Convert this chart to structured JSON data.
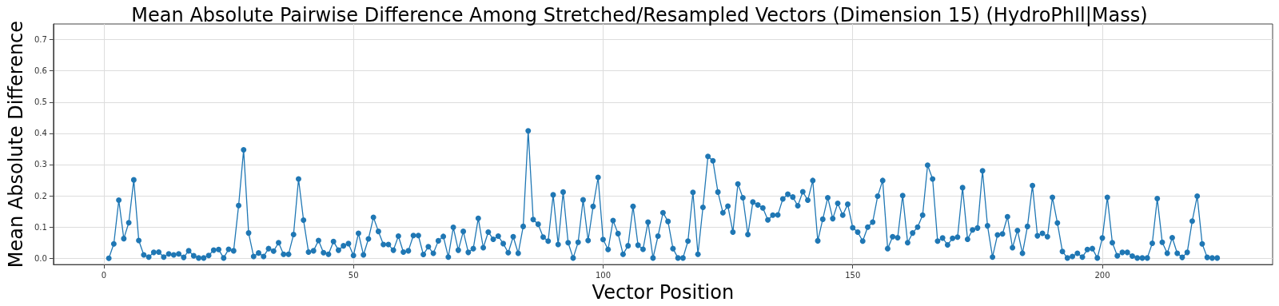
{
  "chart_data": {
    "type": "line",
    "title": "Mean Absolute Pairwise Difference Among Stretched/Resampled Vectors (Dimension 15) (HydroPhIl|Mass)",
    "xlabel": "Vector Position",
    "ylabel": "Mean Absolute Difference",
    "x": [
      1,
      2,
      3,
      4,
      5,
      6,
      7,
      8,
      9,
      10,
      11,
      12,
      13,
      14,
      15,
      16,
      17,
      18,
      19,
      20,
      21,
      22,
      23,
      24,
      25,
      26,
      27,
      28,
      29,
      30,
      31,
      32,
      33,
      34,
      35,
      36,
      37,
      38,
      39,
      40,
      41,
      42,
      43,
      44,
      45,
      46,
      47,
      48,
      49,
      50,
      51,
      52,
      53,
      54,
      55,
      56,
      57,
      58,
      59,
      60,
      61,
      62,
      63,
      64,
      65,
      66,
      67,
      68,
      69,
      70,
      71,
      72,
      73,
      74,
      75,
      76,
      77,
      78,
      79,
      80,
      81,
      82,
      83,
      84,
      85,
      86,
      87,
      88,
      89,
      90,
      91,
      92,
      93,
      94,
      95,
      96,
      97,
      98,
      99,
      100,
      101,
      102,
      103,
      104,
      105,
      106,
      107,
      108,
      109,
      110,
      111,
      112,
      113,
      114,
      115,
      116,
      117,
      118,
      119,
      120,
      121,
      122,
      123,
      124,
      125,
      126,
      127,
      128,
      129,
      130,
      131,
      132,
      133,
      134,
      135,
      136,
      137,
      138,
      139,
      140,
      141,
      142,
      143,
      144,
      145,
      146,
      147,
      148,
      149,
      150,
      151,
      152,
      153,
      154,
      155,
      156,
      157,
      158,
      159,
      160,
      161,
      162,
      163,
      164,
      165,
      166,
      167,
      168,
      169,
      170,
      171,
      172,
      173,
      174,
      175,
      176,
      177,
      178,
      179,
      180,
      181,
      182,
      183,
      184,
      185,
      186,
      187,
      188,
      189,
      190,
      191,
      192,
      193,
      194,
      195,
      196,
      197,
      198,
      199,
      200,
      201,
      202,
      203,
      204,
      205,
      206,
      207,
      208,
      209,
      210,
      211,
      212,
      213,
      214,
      215,
      216,
      217,
      218,
      219,
      220,
      221,
      222,
      223
    ],
    "series": [
      {
        "color": "#1f77b4",
        "values": [
          0.0,
          0.046,
          0.186,
          0.063,
          0.114,
          0.251,
          0.057,
          0.011,
          0.004,
          0.019,
          0.02,
          0.004,
          0.014,
          0.011,
          0.014,
          0.003,
          0.024,
          0.008,
          0.001,
          0.001,
          0.009,
          0.026,
          0.028,
          0.001,
          0.029,
          0.024,
          0.169,
          0.347,
          0.081,
          0.006,
          0.017,
          0.006,
          0.031,
          0.023,
          0.05,
          0.013,
          0.013,
          0.076,
          0.254,
          0.122,
          0.02,
          0.024,
          0.057,
          0.018,
          0.013,
          0.054,
          0.026,
          0.04,
          0.047,
          0.009,
          0.08,
          0.011,
          0.062,
          0.131,
          0.086,
          0.044,
          0.044,
          0.026,
          0.071,
          0.02,
          0.024,
          0.073,
          0.073,
          0.012,
          0.037,
          0.016,
          0.056,
          0.07,
          0.004,
          0.099,
          0.026,
          0.086,
          0.019,
          0.031,
          0.128,
          0.034,
          0.084,
          0.061,
          0.071,
          0.047,
          0.018,
          0.069,
          0.016,
          0.102,
          0.408,
          0.124,
          0.109,
          0.068,
          0.055,
          0.203,
          0.044,
          0.212,
          0.05,
          0.001,
          0.051,
          0.187,
          0.057,
          0.166,
          0.259,
          0.06,
          0.028,
          0.121,
          0.079,
          0.013,
          0.04,
          0.166,
          0.042,
          0.029,
          0.116,
          0.001,
          0.071,
          0.146,
          0.118,
          0.031,
          0.001,
          0.001,
          0.055,
          0.211,
          0.013,
          0.163,
          0.326,
          0.312,
          0.212,
          0.146,
          0.167,
          0.084,
          0.238,
          0.194,
          0.076,
          0.18,
          0.171,
          0.161,
          0.123,
          0.138,
          0.139,
          0.19,
          0.205,
          0.196,
          0.168,
          0.213,
          0.186,
          0.249,
          0.056,
          0.125,
          0.194,
          0.127,
          0.176,
          0.138,
          0.173,
          0.098,
          0.084,
          0.055,
          0.1,
          0.116,
          0.199,
          0.249,
          0.031,
          0.069,
          0.066,
          0.201,
          0.05,
          0.081,
          0.1,
          0.138,
          0.298,
          0.254,
          0.055,
          0.065,
          0.043,
          0.064,
          0.068,
          0.226,
          0.061,
          0.091,
          0.097,
          0.28,
          0.104,
          0.004,
          0.075,
          0.078,
          0.133,
          0.034,
          0.089,
          0.016,
          0.102,
          0.233,
          0.072,
          0.08,
          0.069,
          0.195,
          0.113,
          0.022,
          0.001,
          0.006,
          0.016,
          0.004,
          0.028,
          0.031,
          0.001,
          0.065,
          0.195,
          0.05,
          0.008,
          0.019,
          0.019,
          0.007,
          0.001,
          0.001,
          0.001,
          0.048,
          0.191,
          0.051,
          0.016,
          0.066,
          0.016,
          0.003,
          0.019,
          0.119,
          0.199,
          0.046,
          0.003,
          0.001,
          0.001
        ]
      }
    ],
    "xlim": [
      -10.1,
      234.1
    ],
    "xticks": [
      0,
      50,
      100,
      150,
      200
    ],
    "ylim": [
      -0.02,
      0.75
    ],
    "yticks": [
      {
        "value": 0,
        "label": "0.0"
      },
      {
        "value": 0.1,
        "label": "0.1"
      },
      {
        "value": 0.2,
        "label": "0.2"
      },
      {
        "value": 0.3,
        "label": "0.3"
      },
      {
        "value": 0.4,
        "label": "0.4"
      },
      {
        "value": 0.5,
        "label": "0.5"
      },
      {
        "value": 0.6,
        "label": "0.6"
      },
      {
        "value": 0.7,
        "label": "0.7"
      }
    ],
    "grid": true,
    "marker": "circle",
    "line_style": "solid"
  }
}
